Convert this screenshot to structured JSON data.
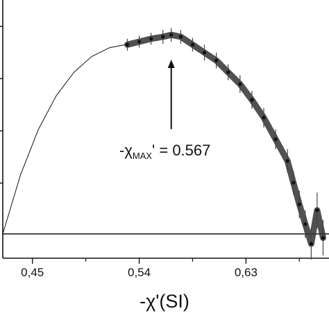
{
  "chart_data": {
    "type": "scatter",
    "title": "",
    "xlabel": "-χ'(SI)",
    "ylabel": "",
    "xlim": [
      0.425,
      0.7
    ],
    "ylim": [
      0,
      1.06
    ],
    "x_ticks": [
      0.45,
      0.54,
      0.63
    ],
    "x_tick_labels": [
      "0,45",
      "0,54",
      "0,63"
    ],
    "y_tick_count": 4,
    "grid": false,
    "annotation": {
      "prefix": "-χ",
      "subscript": "MAX",
      "suffix": "' = 0.567",
      "arrow_x": 0.567
    },
    "series": [
      {
        "style": "line",
        "x": [
          0.425,
          0.44,
          0.455,
          0.47,
          0.485,
          0.5,
          0.515,
          0.53
        ],
        "y": [
          0.0,
          0.3,
          0.53,
          0.7,
          0.82,
          0.9,
          0.945,
          0.962
        ]
      },
      {
        "style": "points-with-error-bars",
        "x": [
          0.53,
          0.54,
          0.55,
          0.56,
          0.567,
          0.575,
          0.585,
          0.595,
          0.605,
          0.615,
          0.625,
          0.635,
          0.645,
          0.655,
          0.665,
          0.67,
          0.675,
          0.68,
          0.685,
          0.69,
          0.695
        ],
        "y": [
          0.96,
          0.975,
          0.99,
          1.0,
          1.01,
          1.0,
          0.96,
          0.92,
          0.88,
          0.82,
          0.76,
          0.68,
          0.59,
          0.48,
          0.37,
          0.26,
          0.15,
          0.05,
          -0.05,
          0.12,
          -0.02
        ],
        "y_error": [
          0.03,
          0.03,
          0.03,
          0.035,
          0.035,
          0.035,
          0.035,
          0.04,
          0.04,
          0.04,
          0.045,
          0.045,
          0.05,
          0.05,
          0.06,
          0.06,
          0.07,
          0.07,
          0.08,
          0.09,
          0.09
        ]
      }
    ]
  }
}
